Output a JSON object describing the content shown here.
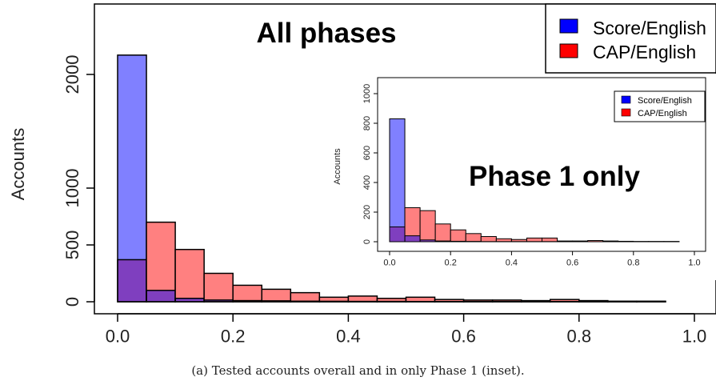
{
  "caption": "(a) Tested accounts overall and in only Phase 1 (inset).",
  "colors": {
    "blue_fill": "#8080ff",
    "red_fill": "#ff8080",
    "overlap_fill": "#7f3fbf",
    "legend_blue": "#0000ff",
    "legend_red": "#ff0000",
    "edge": "#000000"
  },
  "chart_data": [
    {
      "type": "bar",
      "title": "All phases",
      "xlabel": "",
      "ylabel": "Accounts",
      "xlim": [
        0,
        1
      ],
      "ylim": [
        0,
        2550
      ],
      "x_ticks": [
        0.0,
        0.2,
        0.4,
        0.6,
        0.8,
        1.0
      ],
      "x_tick_labels": [
        "0.0",
        "0.2",
        "0.4",
        "0.6",
        "0.8",
        "1.0"
      ],
      "y_ticks": [
        0,
        500,
        1000,
        2000
      ],
      "y_tick_labels": [
        "0",
        "500",
        "1000",
        "2000"
      ],
      "bin_edges": [
        0.0,
        0.05,
        0.1,
        0.15,
        0.2,
        0.25,
        0.3,
        0.35,
        0.4,
        0.45,
        0.5,
        0.55,
        0.6,
        0.65,
        0.7,
        0.75,
        0.8,
        0.85,
        0.9,
        0.95,
        1.0
      ],
      "series": [
        {
          "name": "Score/English",
          "values": [
            2170,
            100,
            30,
            15,
            10,
            8,
            5,
            4,
            3,
            3,
            2,
            2,
            2,
            2,
            2,
            2,
            2,
            2,
            1,
            0
          ]
        },
        {
          "name": "CAP/English",
          "values": [
            370,
            700,
            460,
            250,
            145,
            110,
            80,
            40,
            50,
            30,
            40,
            20,
            15,
            15,
            10,
            20,
            10,
            5,
            5,
            0
          ]
        }
      ],
      "legend": {
        "position": "top-right",
        "entries": [
          "Score/English",
          "CAP/English"
        ]
      },
      "grid": false
    },
    {
      "type": "bar",
      "title": "Phase 1 only",
      "xlabel": "",
      "ylabel": "Accounts",
      "xlim": [
        0,
        1
      ],
      "ylim": [
        0,
        1000
      ],
      "x_ticks": [
        0.0,
        0.2,
        0.4,
        0.6,
        0.8,
        1.0
      ],
      "x_tick_labels": [
        "0.0",
        "0.2",
        "0.4",
        "0.6",
        "0.8",
        "1.0"
      ],
      "y_ticks": [
        0,
        200,
        400,
        600,
        800,
        1000
      ],
      "y_tick_labels": [
        "0",
        "200",
        "400",
        "600",
        "800",
        "1000"
      ],
      "bin_edges": [
        0.0,
        0.05,
        0.1,
        0.15,
        0.2,
        0.25,
        0.3,
        0.35,
        0.4,
        0.45,
        0.5,
        0.55,
        0.6,
        0.65,
        0.7,
        0.75,
        0.8,
        0.85,
        0.9,
        0.95,
        1.0
      ],
      "series": [
        {
          "name": "Score/English",
          "values": [
            830,
            40,
            12,
            5,
            3,
            2,
            1,
            1,
            1,
            1,
            1,
            0,
            0,
            0,
            0,
            0,
            0,
            0,
            0,
            0
          ]
        },
        {
          "name": "CAP/English",
          "values": [
            100,
            230,
            210,
            120,
            80,
            55,
            35,
            20,
            15,
            25,
            25,
            5,
            5,
            8,
            5,
            3,
            2,
            2,
            2,
            0
          ]
        }
      ],
      "legend": {
        "position": "top-right",
        "entries": [
          "Score/English",
          "CAP/English"
        ]
      },
      "grid": false
    }
  ]
}
